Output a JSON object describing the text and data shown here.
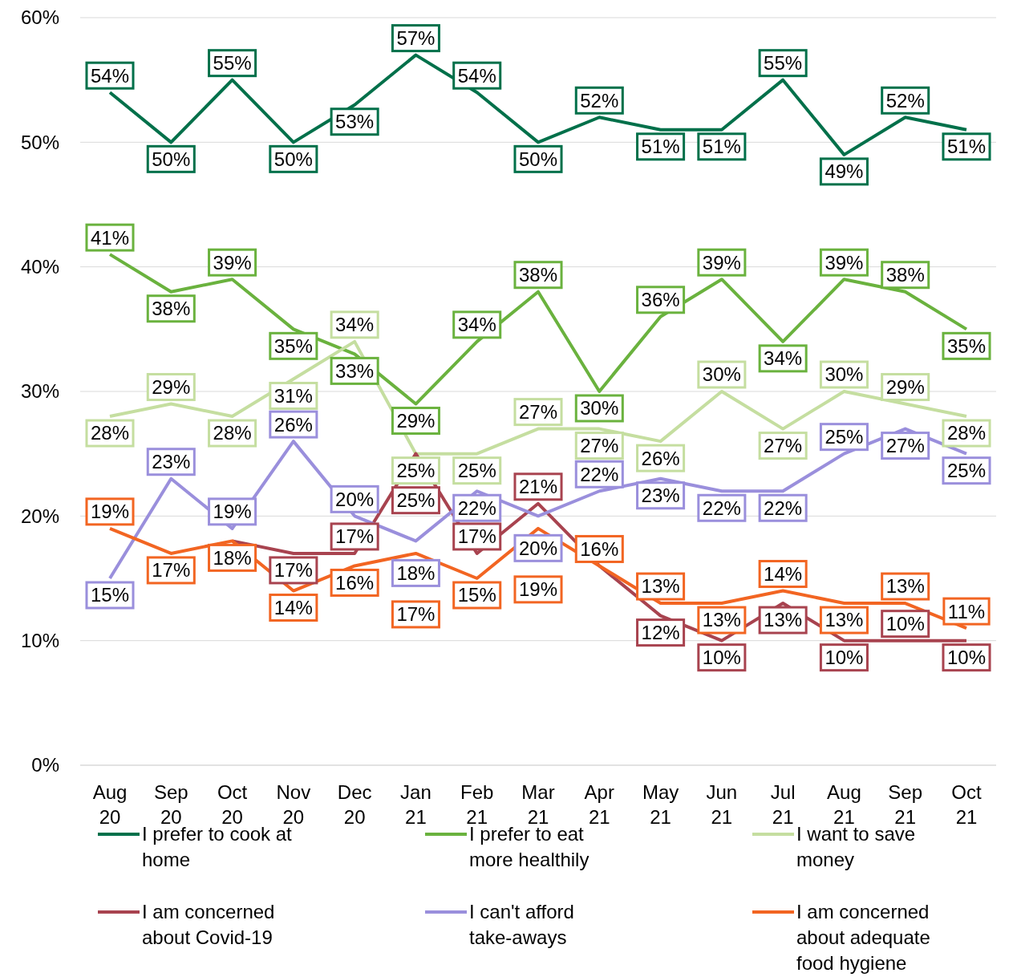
{
  "chart_data": {
    "type": "line",
    "categories": [
      "Aug 20",
      "Sep 20",
      "Oct 20",
      "Nov 20",
      "Dec 20",
      "Jan 21",
      "Feb 21",
      "Mar 21",
      "Apr 21",
      "May 21",
      "Jun 21",
      "Jul 21",
      "Aug 21",
      "Sep 21",
      "Oct 21"
    ],
    "ylim": [
      0,
      60
    ],
    "yticks": [
      {
        "value": 0,
        "label": "0%"
      },
      {
        "value": 10,
        "label": "10%"
      },
      {
        "value": 20,
        "label": "20%"
      },
      {
        "value": 30,
        "label": "30%"
      },
      {
        "value": 40,
        "label": "40%"
      },
      {
        "value": 50,
        "label": "50%"
      },
      {
        "value": 60,
        "label": "60%"
      }
    ],
    "grid": "y",
    "legend": "bottom",
    "line_style": "solid",
    "series": [
      {
        "name": "I prefer to cook at home",
        "color": "#00704a",
        "values": [
          54,
          50,
          55,
          50,
          53,
          57,
          54,
          50,
          52,
          51,
          51,
          55,
          49,
          52,
          51
        ],
        "value_labels": [
          "54%",
          "50%",
          "55%",
          "50%",
          "53%",
          "57%",
          "54%",
          "50%",
          "52%",
          "51%",
          "51%",
          "55%",
          "49%",
          "52%",
          "51%"
        ]
      },
      {
        "name": "I prefer to eat more healthily",
        "color": "#6ab23e",
        "values": [
          41,
          38,
          39,
          35,
          33,
          29,
          34,
          38,
          30,
          36,
          39,
          34,
          39,
          38,
          35
        ],
        "value_labels": [
          "41%",
          "38%",
          "39%",
          "35%",
          "33%",
          "29%",
          "34%",
          "38%",
          "30%",
          "36%",
          "39%",
          "34%",
          "39%",
          "38%",
          "35%"
        ]
      },
      {
        "name": "I want to save money",
        "color": "#c5dea0",
        "values": [
          28,
          29,
          28,
          31,
          34,
          25,
          25,
          27,
          27,
          26,
          30,
          27,
          30,
          29,
          28
        ],
        "value_labels": [
          "28%",
          "29%",
          "28%",
          "31%",
          "34%",
          "25%",
          "25%",
          "27%",
          "27%",
          "26%",
          "30%",
          "27%",
          "30%",
          "29%",
          "28%"
        ]
      },
      {
        "name": "I am concerned about Covid-19",
        "color": "#a8434f",
        "values": [
          null,
          null,
          18,
          17,
          17,
          25,
          17,
          21,
          16,
          12,
          10,
          13,
          10,
          10,
          10
        ],
        "value_labels": [
          null,
          null,
          null,
          "17%",
          "17%",
          "25%",
          "17%",
          "21%",
          null,
          "12%",
          "10%",
          "13%",
          "10%",
          "10%",
          "10%"
        ]
      },
      {
        "name": "I can't afford take-aways",
        "color": "#9a8fdc",
        "values": [
          15,
          23,
          19,
          26,
          20,
          18,
          22,
          20,
          22,
          23,
          22,
          22,
          25,
          27,
          25
        ],
        "value_labels": [
          "15%",
          "23%",
          "19%",
          "26%",
          "20%",
          "18%",
          "22%",
          "20%",
          "22%",
          "23%",
          "22%",
          "22%",
          "25%",
          "27%",
          "25%"
        ]
      },
      {
        "name": "I am concerned about adequate food hygiene",
        "color": "#f26522",
        "values": [
          19,
          17,
          18,
          14,
          16,
          17,
          15,
          19,
          16,
          13,
          13,
          14,
          13,
          13,
          11
        ],
        "value_labels": [
          "19%",
          "17%",
          "18%",
          "14%",
          "16%",
          "17%",
          "15%",
          "19%",
          "16%",
          "13%",
          "13%",
          "14%",
          "13%",
          "13%",
          "11%"
        ]
      }
    ]
  }
}
